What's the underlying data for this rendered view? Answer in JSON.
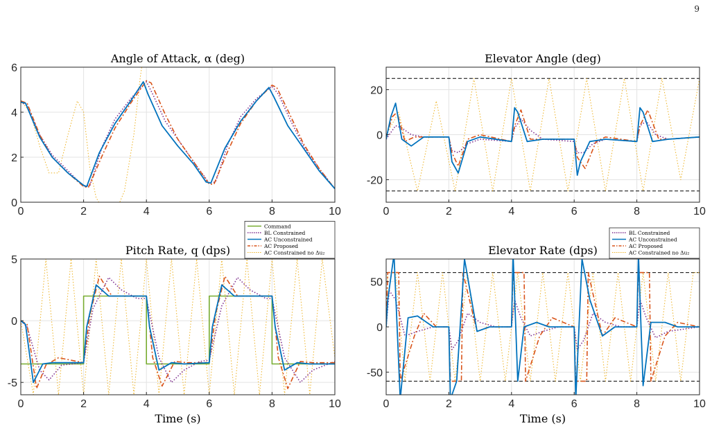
{
  "page_number": "9",
  "colors": {
    "command": "#77AC30",
    "bl_constrained": "#7E2F8E",
    "ac_unconstrained": "#0072BD",
    "ac_proposed": "#D95319",
    "ac_constrained_no_du2": "#EDB120",
    "limit": "#000000",
    "grid": "#e3e3e3"
  },
  "chart_data": [
    {
      "id": "alpha",
      "type": "line",
      "title": "Angle of Attack, α (deg)",
      "xlabel": "",
      "ylabel": "",
      "xlim": [
        0,
        10
      ],
      "ylim": [
        0,
        6
      ],
      "xticks": [
        "0",
        "2",
        "4",
        "6",
        "8",
        "10"
      ],
      "yticks": [
        "0",
        "2",
        "4",
        "6"
      ],
      "grid": true,
      "series": [
        {
          "key": "ac_constrained_no_du2",
          "style": "dotted",
          "x": [
            0,
            0.3,
            0.6,
            0.9,
            1.2,
            1.5,
            1.8,
            2.0,
            2.2,
            2.4,
            2.7,
            3.0,
            3.3,
            3.6,
            3.8,
            3.9
          ],
          "y": [
            4.5,
            4.0,
            2.5,
            1.3,
            1.3,
            3.0,
            4.5,
            4.0,
            1.5,
            0.2,
            -0.5,
            -0.5,
            0.5,
            3.0,
            5.5,
            6.5
          ]
        },
        {
          "key": "bl_constrained",
          "style": "dotted",
          "x": [
            0,
            0.2,
            0.6,
            1.0,
            1.5,
            2.0,
            2.2,
            2.6,
            3.0,
            3.5,
            4.0,
            4.2,
            4.6,
            5.0,
            5.5,
            6.0,
            6.2,
            6.6,
            7.0,
            7.5,
            8.0,
            8.2,
            8.6,
            9.0,
            9.5,
            10
          ],
          "y": [
            4.45,
            4.3,
            3.0,
            2.1,
            1.4,
            0.7,
            0.75,
            2.5,
            3.7,
            4.6,
            5.35,
            4.8,
            3.6,
            2.8,
            1.8,
            0.85,
            0.9,
            2.6,
            3.8,
            4.6,
            5.15,
            4.8,
            3.6,
            2.5,
            1.5,
            0.6
          ]
        },
        {
          "key": "ac_proposed",
          "style": "dashdot",
          "x": [
            0,
            0.2,
            0.6,
            1.0,
            1.5,
            2.0,
            2.15,
            2.6,
            3.0,
            3.5,
            4.0,
            4.15,
            4.6,
            5.0,
            5.5,
            6.0,
            6.15,
            6.6,
            7.0,
            7.5,
            8.0,
            8.15,
            8.6,
            9.0,
            9.5,
            10
          ],
          "y": [
            4.5,
            4.4,
            3.0,
            2.0,
            1.3,
            0.7,
            0.65,
            2.1,
            3.3,
            4.4,
            5.4,
            5.3,
            3.9,
            2.8,
            1.8,
            0.8,
            0.8,
            2.3,
            3.5,
            4.5,
            5.2,
            5.1,
            3.8,
            2.6,
            1.5,
            0.6
          ]
        },
        {
          "key": "ac_unconstrained",
          "style": "solid",
          "x": [
            0,
            0.15,
            0.6,
            1.0,
            1.5,
            2.0,
            2.1,
            2.5,
            3.0,
            3.5,
            3.9,
            4.05,
            4.5,
            5.0,
            5.5,
            5.9,
            6.05,
            6.5,
            7.0,
            7.5,
            7.9,
            8.05,
            8.5,
            9.0,
            9.5,
            10
          ],
          "y": [
            4.45,
            4.4,
            2.9,
            2.0,
            1.3,
            0.75,
            0.7,
            2.2,
            3.5,
            4.5,
            5.35,
            4.8,
            3.4,
            2.5,
            1.7,
            0.9,
            0.85,
            2.4,
            3.6,
            4.5,
            5.1,
            4.7,
            3.4,
            2.4,
            1.4,
            0.6
          ]
        }
      ]
    },
    {
      "id": "elev_angle",
      "type": "line",
      "title": "Elevator Angle (deg)",
      "xlabel": "",
      "ylabel": "",
      "xlim": [
        0,
        10
      ],
      "ylim": [
        -30,
        30
      ],
      "xticks": [
        "0",
        "2",
        "4",
        "6",
        "8",
        "10"
      ],
      "yticks": [
        "-20",
        "0",
        "20"
      ],
      "ytick_values": [
        -20,
        0,
        20
      ],
      "grid": true,
      "limits": [
        25,
        -25
      ],
      "series": [
        {
          "key": "ac_constrained_no_du2",
          "style": "dotted",
          "x": [
            0,
            0.4,
            1.0,
            1.6,
            2.2,
            2.8,
            3.4,
            4.0,
            4.6,
            5.2,
            5.8,
            6.4,
            7.0,
            7.6,
            8.2,
            8.8,
            9.4,
            10
          ],
          "y": [
            0,
            10,
            -25,
            15,
            -25,
            25,
            -25,
            25,
            -25,
            25,
            -25,
            25,
            -25,
            25,
            -25,
            25,
            -20,
            25
          ]
        },
        {
          "key": "bl_constrained",
          "style": "dotted",
          "x": [
            0,
            0.3,
            0.5,
            0.8,
            1.2,
            2.0,
            2.1,
            2.3,
            2.6,
            3.0,
            4.0,
            4.1,
            4.3,
            4.6,
            5.0,
            6.0,
            6.1,
            6.3,
            6.6,
            7.0,
            8.0,
            8.1,
            8.3,
            8.6,
            9.0,
            10
          ],
          "y": [
            -2,
            4,
            3,
            0,
            -1,
            -1,
            -7,
            -8,
            -4,
            -2,
            -3,
            3,
            7,
            2,
            -2,
            -3,
            -8,
            -8,
            -4,
            -2,
            -3,
            4,
            6,
            0,
            -2,
            -1
          ]
        },
        {
          "key": "ac_proposed",
          "style": "dashdot",
          "x": [
            0,
            0.2,
            0.35,
            0.6,
            0.9,
            1.3,
            2.0,
            2.1,
            2.3,
            2.6,
            3.0,
            4.0,
            4.1,
            4.3,
            4.6,
            5.0,
            6.0,
            6.1,
            6.35,
            6.7,
            7.0,
            8.0,
            8.1,
            8.35,
            8.7,
            9.0,
            10
          ],
          "y": [
            -1,
            8,
            10,
            -3,
            -1,
            -1,
            -1,
            -8,
            -14,
            -2,
            0,
            -3,
            4,
            11,
            -2,
            -2,
            -2,
            -10,
            -15,
            -3,
            -1,
            -3,
            4,
            11,
            -2,
            -2,
            -1
          ]
        },
        {
          "key": "ac_unconstrained",
          "style": "solid",
          "x": [
            0,
            0.15,
            0.3,
            0.5,
            0.8,
            1.2,
            2.0,
            2.1,
            2.3,
            2.6,
            3.0,
            4.0,
            4.1,
            4.2,
            4.5,
            5.0,
            6.0,
            6.1,
            6.2,
            6.5,
            7.0,
            8.0,
            8.1,
            8.2,
            8.5,
            9.0,
            10
          ],
          "y": [
            -2,
            8,
            14,
            -2,
            -5,
            -1,
            -1,
            -12,
            -17,
            -3,
            -1,
            -3,
            12,
            10,
            -3,
            -2,
            -2,
            -18,
            -12,
            -3,
            -2,
            -3,
            12,
            10,
            -3,
            -2,
            -1
          ]
        }
      ]
    },
    {
      "id": "pitch_rate",
      "type": "line",
      "title": "Pitch Rate, q (dps)",
      "xlabel": "Time (s)",
      "ylabel": "",
      "xlim": [
        0,
        10
      ],
      "ylim": [
        -6,
        5
      ],
      "xticks": [
        "0",
        "2",
        "4",
        "6",
        "8",
        "10"
      ],
      "yticks": [
        "-5",
        "0",
        "5"
      ],
      "ytick_values": [
        -5,
        0,
        5
      ],
      "grid": true,
      "series": [
        {
          "key": "ac_constrained_no_du2",
          "style": "dotted",
          "x": [
            0,
            0.4,
            0.8,
            1.2,
            1.6,
            2.0,
            2.4,
            2.8,
            3.2,
            3.6,
            4.0,
            4.4,
            4.8,
            5.2,
            5.6,
            6.0,
            6.4,
            6.8,
            7.2,
            7.6,
            8.0,
            8.4,
            8.8,
            9.2,
            9.6,
            10
          ],
          "y": [
            0,
            -6,
            5,
            -6,
            5,
            -6,
            5,
            -6,
            5,
            -6,
            5,
            -6,
            5,
            -6,
            5,
            -6,
            5,
            -6,
            5,
            -6,
            5,
            -6,
            5,
            -6,
            5,
            -3
          ]
        },
        {
          "key": "command",
          "style": "solid",
          "x": [
            0,
            2,
            2,
            4,
            4,
            6,
            6,
            8,
            8,
            10
          ],
          "y": [
            -3.5,
            -3.5,
            2,
            2,
            -3.5,
            -3.5,
            2,
            2,
            -3.5,
            -3.5
          ]
        },
        {
          "key": "bl_constrained",
          "style": "dotted",
          "x": [
            0,
            0.2,
            0.6,
            0.9,
            1.3,
            2.0,
            2.3,
            2.8,
            3.2,
            3.7,
            4.0,
            4.4,
            4.8,
            5.2,
            5.7,
            6.0,
            6.4,
            6.9,
            7.3,
            7.8,
            8.0,
            8.4,
            8.9,
            9.3,
            10
          ],
          "y": [
            0,
            -0.5,
            -4.0,
            -4.8,
            -3.6,
            -3.4,
            1.0,
            3.5,
            2.5,
            1.8,
            1.8,
            -3.0,
            -5.0,
            -4.0,
            -3.3,
            -3.2,
            1.2,
            3.5,
            2.5,
            1.8,
            1.8,
            -3.0,
            -5.0,
            -4.0,
            -3.3
          ]
        },
        {
          "key": "ac_proposed",
          "style": "dashdot",
          "x": [
            0,
            0.2,
            0.5,
            0.8,
            1.2,
            2.0,
            2.2,
            2.5,
            2.9,
            3.3,
            4.0,
            4.2,
            4.5,
            4.9,
            5.3,
            6.0,
            6.2,
            6.5,
            6.9,
            7.3,
            8.0,
            8.2,
            8.5,
            8.9,
            9.3,
            10
          ],
          "y": [
            0,
            -0.3,
            -5.5,
            -3.6,
            -3.0,
            -3.4,
            0.5,
            3.6,
            2.0,
            2.0,
            2.0,
            -3.0,
            -5.3,
            -3.3,
            -3.4,
            -3.4,
            0.5,
            3.6,
            2.0,
            2.0,
            2.0,
            -3.0,
            -5.5,
            -3.3,
            -3.4,
            -3.4
          ]
        },
        {
          "key": "ac_unconstrained",
          "style": "solid",
          "x": [
            0,
            0.15,
            0.4,
            0.7,
            1.0,
            2.0,
            2.1,
            2.4,
            2.8,
            3.2,
            4.0,
            4.1,
            4.4,
            4.8,
            5.2,
            6.0,
            6.1,
            6.4,
            6.8,
            7.2,
            8.0,
            8.1,
            8.4,
            8.8,
            9.2,
            10
          ],
          "y": [
            0,
            -0.3,
            -5.0,
            -3.5,
            -3.4,
            -3.4,
            -0.5,
            2.9,
            2.0,
            2.0,
            2.0,
            -0.5,
            -4.0,
            -3.4,
            -3.5,
            -3.4,
            -0.5,
            2.9,
            2.0,
            2.0,
            2.0,
            -0.5,
            -4.0,
            -3.4,
            -3.5,
            -3.5
          ]
        }
      ],
      "legend": [
        "Command",
        "BL Constrained",
        "AC Unconstrained",
        "AC Proposed",
        "AC Constrained no Δu₂"
      ]
    },
    {
      "id": "elev_rate",
      "type": "line",
      "title": "Elevator Rate (dps)",
      "xlabel": "Time (s)",
      "ylabel": "",
      "xlim": [
        0,
        10
      ],
      "ylim": [
        -75,
        75
      ],
      "xticks": [
        "0",
        "2",
        "4",
        "6",
        "8",
        "10"
      ],
      "yticks": [
        "-50",
        "0",
        "50"
      ],
      "ytick_values": [
        -50,
        0,
        50
      ],
      "grid": true,
      "limits": [
        60,
        -60
      ],
      "series": [
        {
          "key": "ac_constrained_no_du2",
          "style": "dotted",
          "x": [
            0,
            0.05,
            0.3,
            0.6,
            1.0,
            1.4,
            1.8,
            2.2,
            2.6,
            3.0,
            3.4,
            3.8,
            4.2,
            4.6,
            5.0,
            5.4,
            5.8,
            6.2,
            6.6,
            7.0,
            7.4,
            7.8,
            8.2,
            8.6,
            9.0,
            9.4,
            9.8,
            10
          ],
          "y": [
            0,
            60,
            60,
            -60,
            60,
            -60,
            60,
            -60,
            60,
            -60,
            60,
            -60,
            60,
            -60,
            60,
            -60,
            60,
            -60,
            60,
            -60,
            60,
            -60,
            60,
            -60,
            60,
            -60,
            60,
            60
          ]
        },
        {
          "key": "bl_constrained",
          "style": "dotted",
          "x": [
            0,
            0.1,
            0.3,
            0.6,
            1.0,
            1.5,
            2.0,
            2.1,
            2.3,
            2.6,
            3.0,
            3.5,
            4.0,
            4.1,
            4.3,
            4.6,
            5.0,
            5.5,
            6.0,
            6.1,
            6.3,
            6.6,
            7.0,
            7.5,
            8.0,
            8.1,
            8.3,
            8.6,
            9.0,
            10
          ],
          "y": [
            0,
            40,
            30,
            -10,
            -5,
            0,
            0,
            -25,
            -15,
            15,
            5,
            0,
            0,
            30,
            10,
            -10,
            -5,
            0,
            0,
            -25,
            -15,
            15,
            5,
            0,
            0,
            30,
            10,
            -12,
            -5,
            0
          ]
        },
        {
          "key": "ac_proposed",
          "style": "dashdot",
          "x": [
            0,
            0.05,
            0.4,
            0.45,
            0.9,
            1.2,
            1.6,
            2.0,
            2.05,
            2.4,
            2.45,
            2.9,
            3.3,
            4.0,
            4.05,
            4.4,
            4.45,
            4.9,
            5.3,
            6.0,
            6.05,
            6.4,
            6.45,
            6.9,
            7.3,
            8.0,
            8.05,
            8.4,
            8.45,
            8.9,
            9.3,
            10
          ],
          "y": [
            0,
            60,
            60,
            -60,
            -10,
            15,
            0,
            0,
            -60,
            -60,
            60,
            -5,
            0,
            0,
            60,
            60,
            -60,
            -10,
            10,
            0,
            -60,
            -60,
            60,
            -10,
            10,
            0,
            60,
            60,
            -60,
            -10,
            5,
            0
          ]
        },
        {
          "key": "ac_unconstrained",
          "style": "solid",
          "x": [
            0,
            0.05,
            0.25,
            0.45,
            0.7,
            1.0,
            1.5,
            2.0,
            2.05,
            2.25,
            2.5,
            2.9,
            3.3,
            4.0,
            4.05,
            4.2,
            4.4,
            4.8,
            5.2,
            6.0,
            6.05,
            6.25,
            6.5,
            6.9,
            7.3,
            8.0,
            8.05,
            8.2,
            8.45,
            8.9,
            9.3,
            10
          ],
          "y": [
            0,
            30,
            80,
            -80,
            10,
            12,
            0,
            0,
            -80,
            -60,
            75,
            -5,
            0,
            0,
            80,
            -60,
            0,
            5,
            0,
            0,
            -80,
            75,
            30,
            -10,
            0,
            0,
            80,
            -65,
            5,
            5,
            0,
            0
          ]
        }
      ],
      "legend": [
        "BL Constrained",
        "AC Unconstrained",
        "AC Proposed",
        "AC Constrained no Δu₂"
      ]
    }
  ]
}
